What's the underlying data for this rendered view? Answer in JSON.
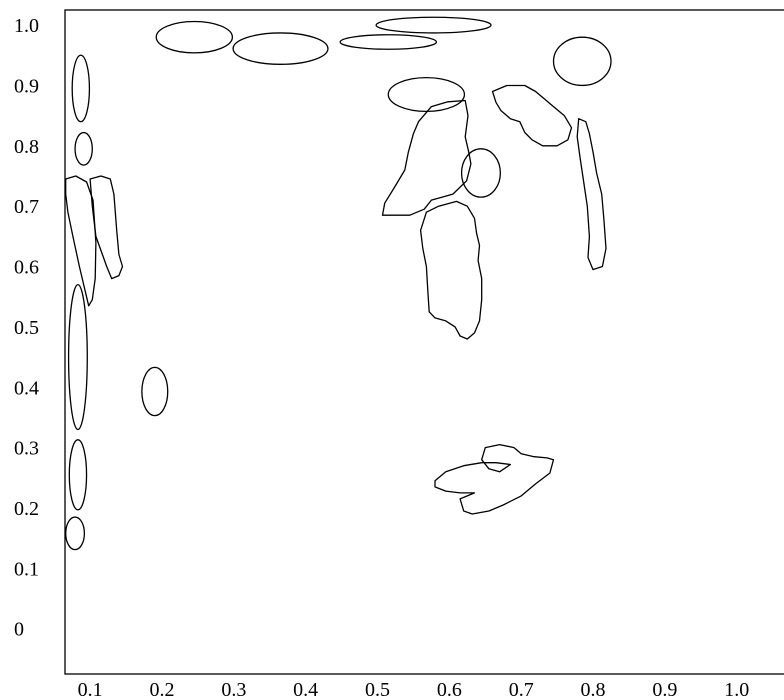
{
  "chart_data": {
    "type": "contour",
    "title": "",
    "xlabel": "",
    "ylabel": "",
    "xlim": [
      0.065,
      1.07
    ],
    "ylim": [
      -0.075,
      1.025
    ],
    "x_ticks": [
      0.1,
      0.2,
      0.3,
      0.4,
      0.5,
      0.6,
      0.7,
      0.8,
      0.9,
      1.0
    ],
    "x_tick_labels": [
      "0.1",
      "0.2",
      "0.3",
      "0.4",
      "0.5",
      "0.6",
      "0.7",
      "0.8",
      "0.9",
      "1.0"
    ],
    "y_ticks": [
      0,
      0.1,
      0.2,
      0.3,
      0.4,
      0.5,
      0.6,
      0.7,
      0.8,
      0.9,
      1.0
    ],
    "y_tick_labels": [
      "0",
      "0.1",
      "0.2",
      "0.3",
      "0.4",
      "0.5",
      "0.6",
      "0.7",
      "0.8",
      "0.9",
      "1.0"
    ],
    "grid": false,
    "legend": "none",
    "regions": [
      {
        "shape": "ellipse",
        "cx": 0.087,
        "cy": 0.895,
        "rx": 0.012,
        "ry": 0.055
      },
      {
        "shape": "ellipse",
        "cx": 0.091,
        "cy": 0.795,
        "rx": 0.012,
        "ry": 0.027
      },
      {
        "shape": "polygon",
        "points": [
          [
            0.066,
            0.745
          ],
          [
            0.08,
            0.75
          ],
          [
            0.095,
            0.74
          ],
          [
            0.104,
            0.71
          ],
          [
            0.108,
            0.64
          ],
          [
            0.107,
            0.58
          ],
          [
            0.103,
            0.545
          ],
          [
            0.098,
            0.535
          ],
          [
            0.093,
            0.56
          ],
          [
            0.085,
            0.6
          ],
          [
            0.076,
            0.65
          ],
          [
            0.069,
            0.69
          ],
          [
            0.066,
            0.72
          ]
        ]
      },
      {
        "shape": "polygon",
        "points": [
          [
            0.1,
            0.745
          ],
          [
            0.115,
            0.75
          ],
          [
            0.128,
            0.745
          ],
          [
            0.133,
            0.72
          ],
          [
            0.137,
            0.66
          ],
          [
            0.14,
            0.62
          ],
          [
            0.145,
            0.6
          ],
          [
            0.14,
            0.585
          ],
          [
            0.13,
            0.58
          ],
          [
            0.123,
            0.6
          ],
          [
            0.117,
            0.62
          ],
          [
            0.108,
            0.65
          ],
          [
            0.103,
            0.7
          ]
        ]
      },
      {
        "shape": "ellipse",
        "cx": 0.083,
        "cy": 0.45,
        "rx": 0.013,
        "ry": 0.12
      },
      {
        "shape": "ellipse",
        "cx": 0.083,
        "cy": 0.255,
        "rx": 0.012,
        "ry": 0.058
      },
      {
        "shape": "ellipse",
        "cx": 0.079,
        "cy": 0.158,
        "rx": 0.013,
        "ry": 0.027
      },
      {
        "shape": "ellipse",
        "cx": 0.19,
        "cy": 0.393,
        "rx": 0.018,
        "ry": 0.04
      },
      {
        "shape": "ellipse",
        "cx": 0.245,
        "cy": 0.98,
        "rx": 0.053,
        "ry": 0.026
      },
      {
        "shape": "ellipse",
        "cx": 0.365,
        "cy": 0.961,
        "rx": 0.066,
        "ry": 0.026
      },
      {
        "shape": "ellipse",
        "cx": 0.515,
        "cy": 0.972,
        "rx": 0.067,
        "ry": 0.012
      },
      {
        "shape": "ellipse",
        "cx": 0.578,
        "cy": 1.0,
        "rx": 0.08,
        "ry": 0.013
      },
      {
        "shape": "ellipse",
        "cx": 0.568,
        "cy": 0.885,
        "rx": 0.053,
        "ry": 0.028
      },
      {
        "shape": "ellipse",
        "cx": 0.785,
        "cy": 0.94,
        "rx": 0.04,
        "ry": 0.04
      },
      {
        "shape": "polygon",
        "points": [
          [
            0.66,
            0.89
          ],
          [
            0.68,
            0.9
          ],
          [
            0.705,
            0.9
          ],
          [
            0.72,
            0.89
          ],
          [
            0.735,
            0.875
          ],
          [
            0.745,
            0.865
          ],
          [
            0.76,
            0.85
          ],
          [
            0.77,
            0.83
          ],
          [
            0.765,
            0.81
          ],
          [
            0.75,
            0.8
          ],
          [
            0.73,
            0.8
          ],
          [
            0.715,
            0.81
          ],
          [
            0.705,
            0.822
          ],
          [
            0.698,
            0.84
          ],
          [
            0.685,
            0.845
          ],
          [
            0.672,
            0.858
          ],
          [
            0.665,
            0.872
          ]
        ]
      },
      {
        "shape": "polygon",
        "points": [
          [
            0.557,
            0.84
          ],
          [
            0.575,
            0.865
          ],
          [
            0.598,
            0.873
          ],
          [
            0.622,
            0.875
          ],
          [
            0.626,
            0.85
          ],
          [
            0.622,
            0.815
          ],
          [
            0.627,
            0.79
          ],
          [
            0.63,
            0.77
          ],
          [
            0.624,
            0.742
          ],
          [
            0.605,
            0.72
          ],
          [
            0.59,
            0.715
          ],
          [
            0.575,
            0.71
          ],
          [
            0.565,
            0.695
          ],
          [
            0.545,
            0.685
          ],
          [
            0.525,
            0.685
          ],
          [
            0.507,
            0.685
          ],
          [
            0.51,
            0.705
          ],
          [
            0.523,
            0.73
          ],
          [
            0.538,
            0.76
          ],
          [
            0.543,
            0.79
          ],
          [
            0.55,
            0.82
          ]
        ]
      },
      {
        "shape": "ellipse",
        "cx": 0.644,
        "cy": 0.755,
        "rx": 0.027,
        "ry": 0.04
      },
      {
        "shape": "polygon",
        "points": [
          [
            0.585,
            0.7
          ],
          [
            0.61,
            0.708
          ],
          [
            0.625,
            0.7
          ],
          [
            0.635,
            0.68
          ],
          [
            0.638,
            0.655
          ],
          [
            0.642,
            0.635
          ],
          [
            0.64,
            0.61
          ],
          [
            0.645,
            0.58
          ],
          [
            0.645,
            0.545
          ],
          [
            0.642,
            0.51
          ],
          [
            0.635,
            0.49
          ],
          [
            0.625,
            0.48
          ],
          [
            0.615,
            0.485
          ],
          [
            0.608,
            0.5
          ],
          [
            0.595,
            0.51
          ],
          [
            0.58,
            0.515
          ],
          [
            0.572,
            0.525
          ],
          [
            0.57,
            0.56
          ],
          [
            0.568,
            0.6
          ],
          [
            0.563,
            0.63
          ],
          [
            0.56,
            0.66
          ],
          [
            0.568,
            0.69
          ]
        ]
      },
      {
        "shape": "polygon",
        "points": [
          [
            0.78,
            0.845
          ],
          [
            0.79,
            0.84
          ],
          [
            0.795,
            0.82
          ],
          [
            0.8,
            0.79
          ],
          [
            0.805,
            0.755
          ],
          [
            0.812,
            0.72
          ],
          [
            0.815,
            0.68
          ],
          [
            0.818,
            0.63
          ],
          [
            0.813,
            0.6
          ],
          [
            0.8,
            0.595
          ],
          [
            0.793,
            0.615
          ],
          [
            0.795,
            0.65
          ],
          [
            0.792,
            0.7
          ],
          [
            0.787,
            0.74
          ],
          [
            0.782,
            0.78
          ],
          [
            0.778,
            0.815
          ]
        ]
      },
      {
        "shape": "polygon",
        "points": [
          [
            0.58,
            0.245
          ],
          [
            0.595,
            0.26
          ],
          [
            0.62,
            0.27
          ],
          [
            0.645,
            0.275
          ],
          [
            0.665,
            0.275
          ],
          [
            0.685,
            0.272
          ],
          [
            0.67,
            0.26
          ],
          [
            0.655,
            0.265
          ],
          [
            0.645,
            0.28
          ],
          [
            0.65,
            0.3
          ],
          [
            0.67,
            0.305
          ],
          [
            0.69,
            0.3
          ],
          [
            0.7,
            0.29
          ],
          [
            0.718,
            0.285
          ],
          [
            0.736,
            0.283
          ],
          [
            0.745,
            0.28
          ],
          [
            0.74,
            0.258
          ],
          [
            0.72,
            0.24
          ],
          [
            0.7,
            0.22
          ],
          [
            0.675,
            0.205
          ],
          [
            0.655,
            0.195
          ],
          [
            0.632,
            0.19
          ],
          [
            0.62,
            0.195
          ],
          [
            0.615,
            0.215
          ],
          [
            0.635,
            0.225
          ],
          [
            0.615,
            0.225
          ],
          [
            0.595,
            0.228
          ],
          [
            0.58,
            0.235
          ]
        ]
      }
    ]
  }
}
